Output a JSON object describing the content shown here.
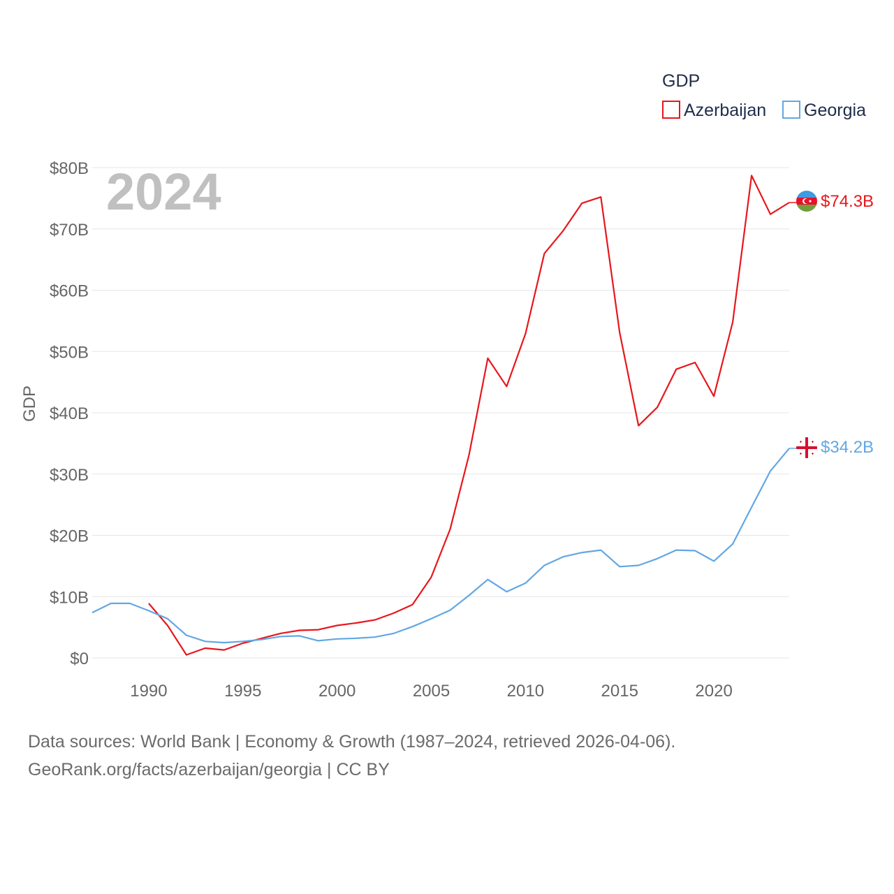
{
  "chart_data": {
    "type": "line",
    "title": "GDP",
    "year_label": "2024",
    "ylabel": "GDP",
    "ylim": [
      0,
      80
    ],
    "xlim": [
      1987,
      2024
    ],
    "y_ticks": [
      0,
      10,
      20,
      30,
      40,
      50,
      60,
      70,
      80
    ],
    "y_tick_labels": [
      "$0",
      "$10B",
      "$20B",
      "$30B",
      "$40B",
      "$50B",
      "$60B",
      "$70B",
      "$80B"
    ],
    "x_ticks": [
      1990,
      1995,
      2000,
      2005,
      2010,
      2015,
      2020
    ],
    "x_tick_labels": [
      "1990",
      "1995",
      "2000",
      "2005",
      "2010",
      "2015",
      "2020"
    ],
    "legend_position": "top-right",
    "series": [
      {
        "name": "Azerbaijan",
        "color": "#e8161c",
        "end_label": "$74.3B",
        "flag_icon": "azerbaijan-flag-icon",
        "x": [
          1990,
          1991,
          1992,
          1993,
          1994,
          1995,
          1996,
          1997,
          1998,
          1999,
          2000,
          2001,
          2002,
          2003,
          2004,
          2005,
          2006,
          2007,
          2008,
          2009,
          2010,
          2011,
          2012,
          2013,
          2014,
          2015,
          2016,
          2017,
          2018,
          2019,
          2020,
          2021,
          2022,
          2023,
          2024
        ],
        "values": [
          8.9,
          5.3,
          0.5,
          1.6,
          1.3,
          2.4,
          3.2,
          4.0,
          4.5,
          4.6,
          5.3,
          5.7,
          6.2,
          7.3,
          8.7,
          13.2,
          21.0,
          33.1,
          48.9,
          44.3,
          52.9,
          66.0,
          69.7,
          74.2,
          75.2,
          53.1,
          37.9,
          40.9,
          47.1,
          48.2,
          42.7,
          54.8,
          78.7,
          72.4,
          74.3
        ]
      },
      {
        "name": "Georgia",
        "color": "#62a7e4",
        "end_label": "$34.2B",
        "flag_icon": "georgia-flag-icon",
        "x": [
          1987,
          1988,
          1989,
          1990,
          1991,
          1992,
          1993,
          1994,
          1995,
          1996,
          1997,
          1998,
          1999,
          2000,
          2001,
          2002,
          2003,
          2004,
          2005,
          2006,
          2007,
          2008,
          2009,
          2010,
          2011,
          2012,
          2013,
          2014,
          2015,
          2016,
          2017,
          2018,
          2019,
          2020,
          2021,
          2022,
          2023,
          2024
        ],
        "values": [
          7.4,
          8.9,
          8.9,
          7.7,
          6.4,
          3.7,
          2.7,
          2.5,
          2.7,
          3.0,
          3.5,
          3.6,
          2.8,
          3.1,
          3.2,
          3.4,
          4.0,
          5.1,
          6.4,
          7.8,
          10.2,
          12.8,
          10.8,
          12.2,
          15.1,
          16.5,
          17.2,
          17.6,
          14.9,
          15.1,
          16.2,
          17.6,
          17.5,
          15.8,
          18.6,
          24.6,
          30.5,
          34.2
        ]
      }
    ]
  },
  "footer": {
    "line1": "Data sources: World Bank | Economy & Growth (1987–2024, retrieved 2026-04-06).",
    "line2": "GeoRank.org/facts/azerbaijan/georgia | CC BY"
  }
}
